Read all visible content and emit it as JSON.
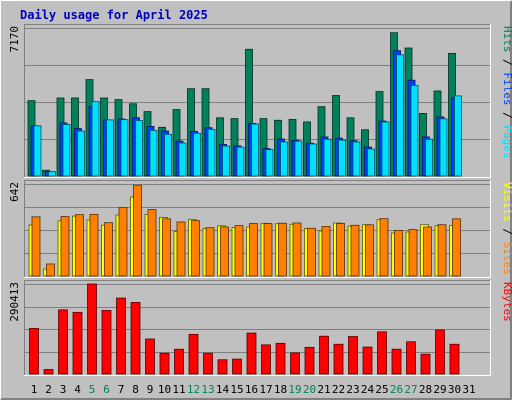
{
  "title": "Daily usage for April 2025",
  "colors": {
    "background": "#c0c0c0",
    "title": "#0000c0",
    "hits": "#00805c",
    "files": "#0040ff",
    "pages": "#00e0ff",
    "visits": "#ffff00",
    "sites": "#ff8000",
    "kbytes": "#ff0000",
    "weekend_label": "#00805c",
    "day_label": "#000000"
  },
  "chart_data": {
    "type": "bar",
    "title": "Daily usage for April 2025",
    "days": [
      "1",
      "2",
      "3",
      "4",
      "5",
      "6",
      "7",
      "8",
      "9",
      "10",
      "11",
      "12",
      "13",
      "14",
      "15",
      "16",
      "17",
      "18",
      "19",
      "20",
      "21",
      "22",
      "23",
      "24",
      "25",
      "26",
      "27",
      "28",
      "29",
      "30",
      "31"
    ],
    "weekend_days": [
      "5",
      "6",
      "12",
      "13",
      "19",
      "20",
      "26",
      "27"
    ],
    "panels": [
      {
        "max_label": "7170",
        "ylim": [
          0,
          7170
        ],
        "legend": [
          "Pages",
          "Files",
          "Hits"
        ],
        "series": [
          {
            "name": "Hits",
            "color": "#00805c",
            "values": [
              3650,
              280,
              3780,
              3780,
              4670,
              3780,
              3700,
              3500,
              3120,
              2360,
              3220,
              4230,
              4230,
              2820,
              2780,
              6140,
              2780,
              2700,
              2740,
              2620,
              3360,
              3900,
              2820,
              2240,
              4090,
              6940,
              6200,
              3030,
              4120,
              5940,
              0
            ]
          },
          {
            "name": "Files",
            "color": "#0040ff",
            "values": [
              2430,
              210,
              2570,
              2300,
              3360,
              2720,
              2760,
              2820,
              2400,
              2180,
              1690,
              2160,
              2340,
              1530,
              1460,
              2550,
              1330,
              1790,
              1730,
              1590,
              1890,
              1830,
              1710,
              1400,
              2660,
              6070,
              4640,
              1890,
              2860,
              3780,
              0
            ]
          },
          {
            "name": "Pages",
            "color": "#00e0ff",
            "values": [
              2430,
              210,
              2500,
              2180,
              3600,
              2720,
              2730,
              2690,
              2210,
              2020,
              1600,
              2070,
              2260,
              1450,
              1400,
              2520,
              1280,
              1650,
              1690,
              1550,
              1780,
              1740,
              1650,
              1310,
              2620,
              5870,
              4390,
              1780,
              2770,
              3880,
              0
            ]
          }
        ]
      },
      {
        "max_label": "642",
        "ylim": [
          0,
          642
        ],
        "legend": [
          "Sites",
          "Visits"
        ],
        "series": [
          {
            "name": "Visits",
            "color": "#ffff00",
            "values": [
              356,
              48,
              385,
              418,
              391,
              355,
              426,
              551,
              430,
              409,
              311,
              393,
              331,
              350,
              339,
              342,
              368,
              365,
              361,
              332,
              314,
              370,
              348,
              358,
              393,
              300,
              307,
              358,
              351,
              353,
              0
            ]
          },
          {
            "name": "Sites",
            "color": "#ff8000",
            "values": [
              413,
              84,
              415,
              428,
              430,
              372,
              479,
              634,
              464,
              399,
              377,
              386,
              337,
              342,
              352,
              366,
              366,
              368,
              370,
              333,
              346,
              367,
              354,
              357,
              400,
              318,
              324,
              342,
              358,
              399,
              0
            ]
          }
        ]
      },
      {
        "max_label": "290413",
        "ylim": [
          0,
          290413
        ],
        "legend": [
          "KBytes"
        ],
        "series": [
          {
            "name": "KBytes",
            "color": "#ff0000",
            "values": [
              147000,
              14600,
              207000,
              199000,
              290413,
              205000,
              245000,
              231000,
              113000,
              67000,
              80000,
              128000,
              67000,
              46000,
              48000,
              132000,
              94000,
              99000,
              68000,
              86000,
              122000,
              96000,
              121000,
              87000,
              136000,
              80000,
              104000,
              64000,
              142000,
              96000,
              0
            ]
          }
        ]
      }
    ]
  }
}
